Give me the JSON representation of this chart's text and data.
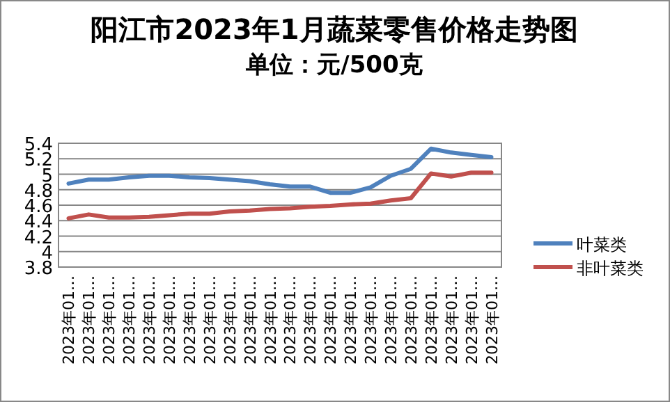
{
  "chart_data": {
    "type": "line",
    "title": "阳江市2023年1月蔬菜零售价格走势图",
    "subtitle": "单位：元/500克",
    "categories": [
      "2023年01…",
      "2023年01…",
      "2023年01…",
      "2023年01…",
      "2023年01…",
      "2023年01…",
      "2023年01…",
      "2023年01…",
      "2023年01…",
      "2023年01…",
      "2023年01…",
      "2023年01…",
      "2023年01…",
      "2023年01…",
      "2023年01…",
      "2023年01…",
      "2023年01…",
      "2023年01…",
      "2023年01…",
      "2023年01…",
      "2023年01…",
      "2023年01…"
    ],
    "series": [
      {
        "name": "叶菜类",
        "color": "#4f81bd",
        "values": [
          4.88,
          4.93,
          4.93,
          4.96,
          4.98,
          4.98,
          4.96,
          4.95,
          4.93,
          4.91,
          4.87,
          4.84,
          4.84,
          4.76,
          4.76,
          4.83,
          4.98,
          5.07,
          5.33,
          5.28,
          5.25,
          5.22
        ]
      },
      {
        "name": "非叶菜类",
        "color": "#c0504d",
        "values": [
          4.43,
          4.48,
          4.44,
          4.44,
          4.45,
          4.47,
          4.49,
          4.49,
          4.52,
          4.53,
          4.55,
          4.56,
          4.58,
          4.59,
          4.61,
          4.62,
          4.66,
          4.69,
          5.01,
          4.97,
          5.02,
          5.02
        ]
      }
    ],
    "ylim": [
      3.8,
      5.4
    ],
    "yticks": [
      3.8,
      4,
      4.2,
      4.4,
      4.6,
      4.8,
      5,
      5.2,
      5.4
    ],
    "grid": "y",
    "legend": "right",
    "marker": "none",
    "line_style": "solid"
  }
}
